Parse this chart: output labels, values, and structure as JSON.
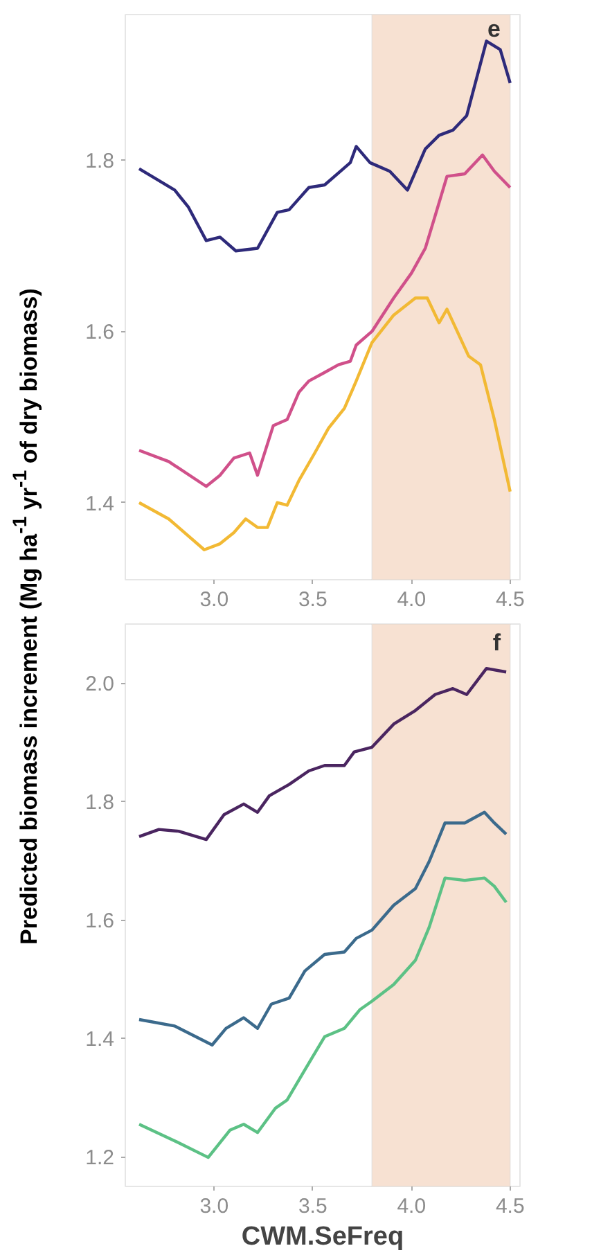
{
  "chart_data": [
    {
      "type": "line",
      "title": "e",
      "ylabel": "Predicted biomass increment (Mg ha$^{-1}$ yr$^{-1}$ of dry biomass)",
      "xlim": [
        2.55,
        4.55
      ],
      "ylim": [
        1.31,
        1.97
      ],
      "xticks": [
        {
          "value": 3.0,
          "label": "3.0"
        },
        {
          "value": 3.5,
          "label": "3.5"
        },
        {
          "value": 4.0,
          "label": "4.0"
        },
        {
          "value": 4.5,
          "label": "4.5"
        }
      ],
      "yticks": [
        {
          "value": 1.4,
          "label": "1.4"
        },
        {
          "value": 1.6,
          "label": "1.6"
        },
        {
          "value": 1.8,
          "label": "1.8"
        }
      ],
      "bands": [
        {
          "axis": "x",
          "from": 3.8,
          "to": 4.5,
          "color": "#f7e1d2"
        }
      ],
      "series": [
        {
          "color": "#2e2a7a",
          "x": [
            2.62,
            2.8,
            2.87,
            2.96,
            3.03,
            3.11,
            3.22,
            3.32,
            3.38,
            3.48,
            3.56,
            3.69,
            3.72,
            3.79,
            3.89,
            3.98,
            4.07,
            4.14,
            4.21,
            4.28,
            4.38,
            4.45,
            4.5
          ],
          "values": [
            1.79,
            1.765,
            1.745,
            1.706,
            1.71,
            1.694,
            1.697,
            1.739,
            1.742,
            1.768,
            1.771,
            1.797,
            1.816,
            1.797,
            1.787,
            1.765,
            1.813,
            1.829,
            1.835,
            1.852,
            1.939,
            1.929,
            1.89
          ]
        },
        {
          "color": "#d0508a",
          "x": [
            2.62,
            2.77,
            2.96,
            3.03,
            3.1,
            3.18,
            3.22,
            3.3,
            3.37,
            3.43,
            3.48,
            3.56,
            3.63,
            3.69,
            3.72,
            3.8,
            3.91,
            4.0,
            4.07,
            4.12,
            4.18,
            4.27,
            4.36,
            4.42,
            4.5
          ],
          "values": [
            1.461,
            1.448,
            1.419,
            1.432,
            1.452,
            1.458,
            1.432,
            1.49,
            1.497,
            1.529,
            1.542,
            1.552,
            1.561,
            1.565,
            1.584,
            1.6,
            1.639,
            1.668,
            1.697,
            1.735,
            1.781,
            1.784,
            1.806,
            1.787,
            1.768
          ]
        },
        {
          "color": "#f2b934",
          "x": [
            2.62,
            2.77,
            2.95,
            3.03,
            3.1,
            3.16,
            3.22,
            3.27,
            3.32,
            3.37,
            3.43,
            3.51,
            3.58,
            3.66,
            3.72,
            3.8,
            3.91,
            4.02,
            4.08,
            4.14,
            4.18,
            4.29,
            4.35,
            4.42,
            4.5
          ],
          "values": [
            1.4,
            1.381,
            1.345,
            1.352,
            1.365,
            1.381,
            1.371,
            1.371,
            1.4,
            1.397,
            1.426,
            1.458,
            1.487,
            1.51,
            1.542,
            1.587,
            1.619,
            1.639,
            1.639,
            1.61,
            1.626,
            1.571,
            1.561,
            1.497,
            1.413
          ]
        }
      ]
    },
    {
      "type": "line",
      "title": "f",
      "xlabel": "CWM.SeFreq",
      "xlim": [
        2.55,
        4.55
      ],
      "ylim": [
        1.15,
        2.1
      ],
      "xticks": [
        {
          "value": 3.0,
          "label": "3.0"
        },
        {
          "value": 3.5,
          "label": "3.5"
        },
        {
          "value": 4.0,
          "label": "4.0"
        },
        {
          "value": 4.5,
          "label": "4.5"
        }
      ],
      "yticks": [
        {
          "value": 1.2,
          "label": "1.2"
        },
        {
          "value": 1.4,
          "label": "1.4"
        },
        {
          "value": 1.6,
          "label": "1.6"
        },
        {
          "value": 1.8,
          "label": "1.8"
        },
        {
          "value": 2.0,
          "label": "2.0"
        }
      ],
      "bands": [
        {
          "axis": "x",
          "from": 3.8,
          "to": 4.5,
          "color": "#f7e1d2"
        }
      ],
      "series": [
        {
          "color": "#4a2560",
          "x": [
            2.62,
            2.72,
            2.82,
            2.96,
            3.05,
            3.15,
            3.22,
            3.28,
            3.38,
            3.48,
            3.56,
            3.66,
            3.71,
            3.8,
            3.91,
            4.02,
            4.12,
            4.21,
            4.28,
            4.38,
            4.48
          ],
          "values": [
            1.741,
            1.753,
            1.75,
            1.736,
            1.778,
            1.796,
            1.782,
            1.81,
            1.829,
            1.852,
            1.861,
            1.861,
            1.884,
            1.892,
            1.931,
            1.954,
            1.981,
            1.991,
            1.981,
            2.025,
            2.019
          ]
        },
        {
          "color": "#3b6a8c",
          "x": [
            2.62,
            2.8,
            2.99,
            3.06,
            3.15,
            3.22,
            3.29,
            3.38,
            3.46,
            3.56,
            3.66,
            3.72,
            3.8,
            3.91,
            4.02,
            4.09,
            4.17,
            4.27,
            4.37,
            4.42,
            4.48
          ],
          "values": [
            1.432,
            1.421,
            1.389,
            1.417,
            1.435,
            1.417,
            1.458,
            1.468,
            1.514,
            1.542,
            1.546,
            1.569,
            1.583,
            1.625,
            1.653,
            1.699,
            1.764,
            1.764,
            1.782,
            1.764,
            1.745
          ]
        },
        {
          "color": "#5cc185",
          "x": [
            2.62,
            2.8,
            2.97,
            3.08,
            3.15,
            3.22,
            3.31,
            3.37,
            3.46,
            3.56,
            3.66,
            3.74,
            3.8,
            3.91,
            4.02,
            4.09,
            4.17,
            4.27,
            4.37,
            4.42,
            4.48
          ],
          "values": [
            1.255,
            1.227,
            1.199,
            1.245,
            1.255,
            1.241,
            1.282,
            1.296,
            1.347,
            1.403,
            1.417,
            1.449,
            1.463,
            1.491,
            1.532,
            1.588,
            1.671,
            1.667,
            1.671,
            1.657,
            1.63
          ]
        }
      ]
    }
  ]
}
